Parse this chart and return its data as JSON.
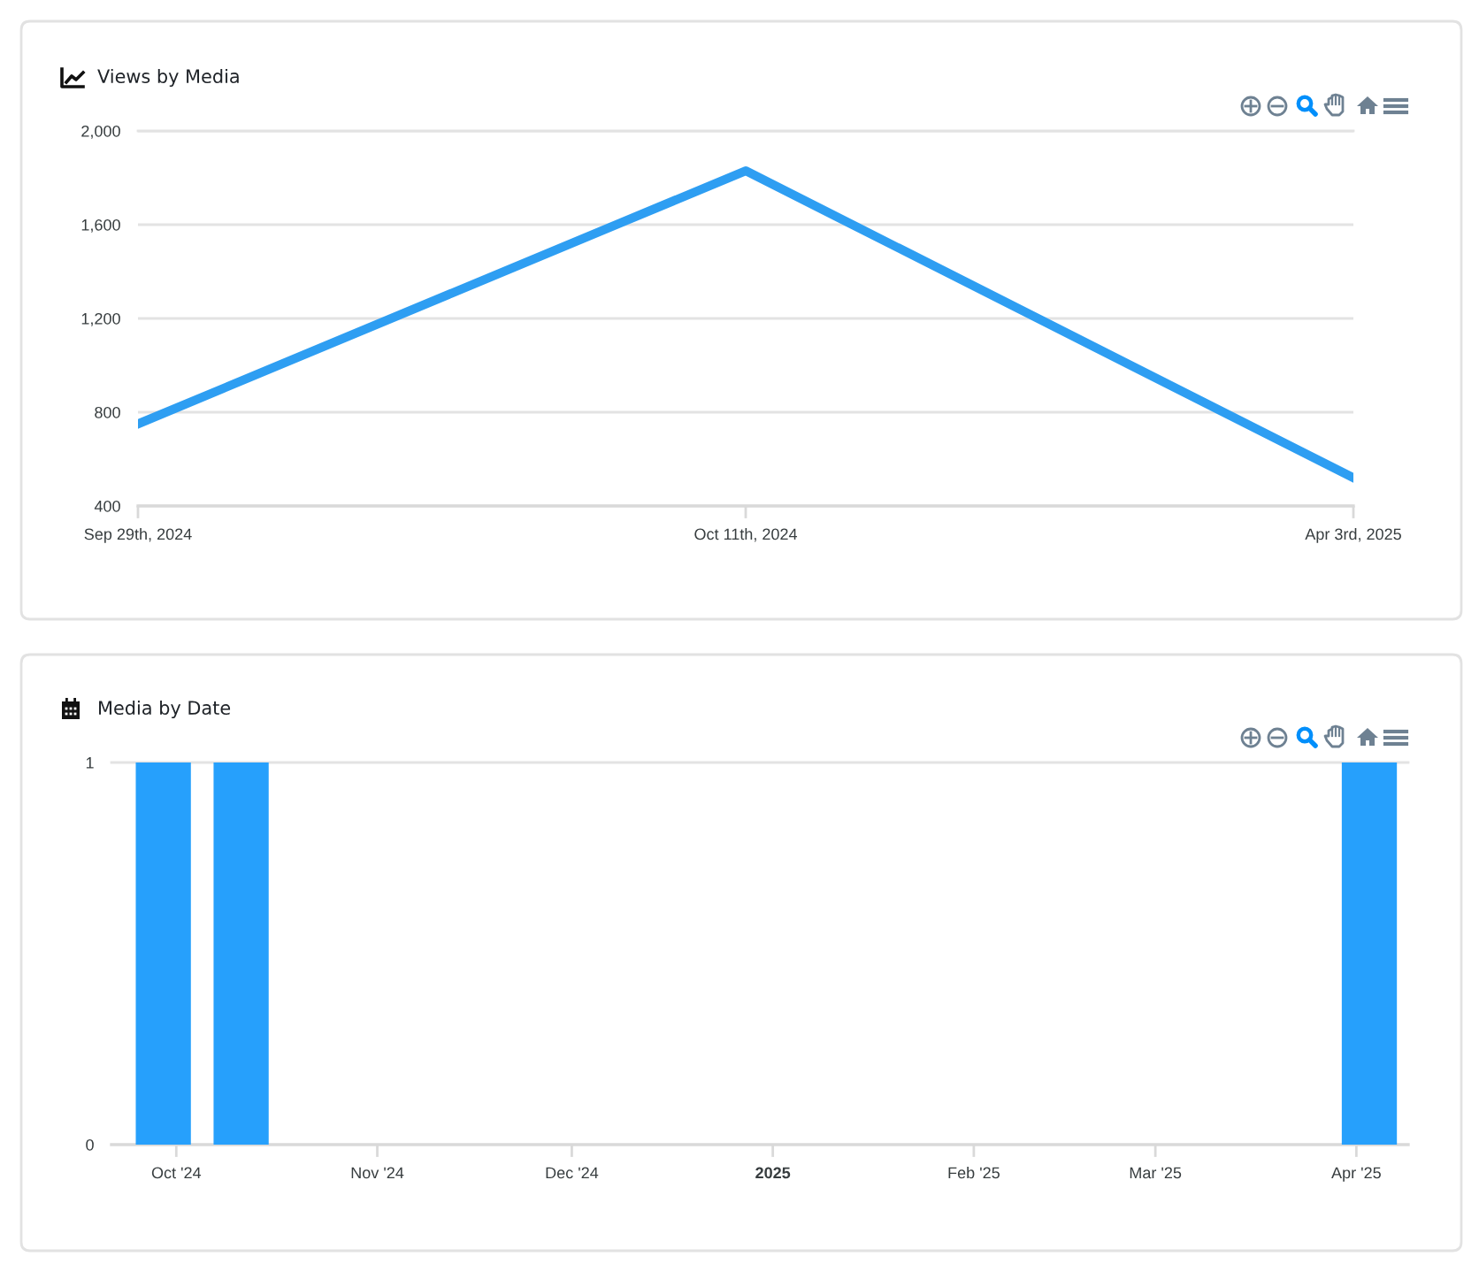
{
  "chart_data": [
    {
      "type": "line",
      "title": "Views by Media",
      "categories": [
        "Sep 29th, 2024",
        "Oct 11th, 2024",
        "Apr 3rd, 2025"
      ],
      "values": [
        750,
        1830,
        520
      ],
      "color": "#2e9ef2",
      "ylim": [
        400,
        2000
      ],
      "yticks": [
        400,
        800,
        {
          "value": 1200,
          "label": "1,200"
        },
        {
          "value": 1600,
          "label": "1,600"
        },
        {
          "value": 2000,
          "label": "2,000"
        }
      ],
      "grid": "y"
    },
    {
      "type": "bar",
      "title": "Media by Date",
      "x": [
        "2024-09-29",
        "2024-10-11",
        "2025-04-03"
      ],
      "values": [
        1,
        1,
        1
      ],
      "color": "#26a0fc",
      "xlim": [
        "2024-09-21",
        "2025-04-09"
      ],
      "xticks": [
        {
          "value": "2024-10-01",
          "label": "Oct '24"
        },
        {
          "value": "2024-11-01",
          "label": "Nov '24"
        },
        {
          "value": "2024-12-01",
          "label": "Dec '24"
        },
        {
          "value": "2025-01-01",
          "label": "2025"
        },
        {
          "value": "2025-02-01",
          "label": "Feb '25"
        },
        {
          "value": "2025-03-01",
          "label": "Mar '25"
        },
        {
          "value": "2025-04-01",
          "label": "Apr '25"
        }
      ],
      "ylim": [
        0,
        1
      ],
      "yticks": [
        0,
        1
      ]
    }
  ]
}
